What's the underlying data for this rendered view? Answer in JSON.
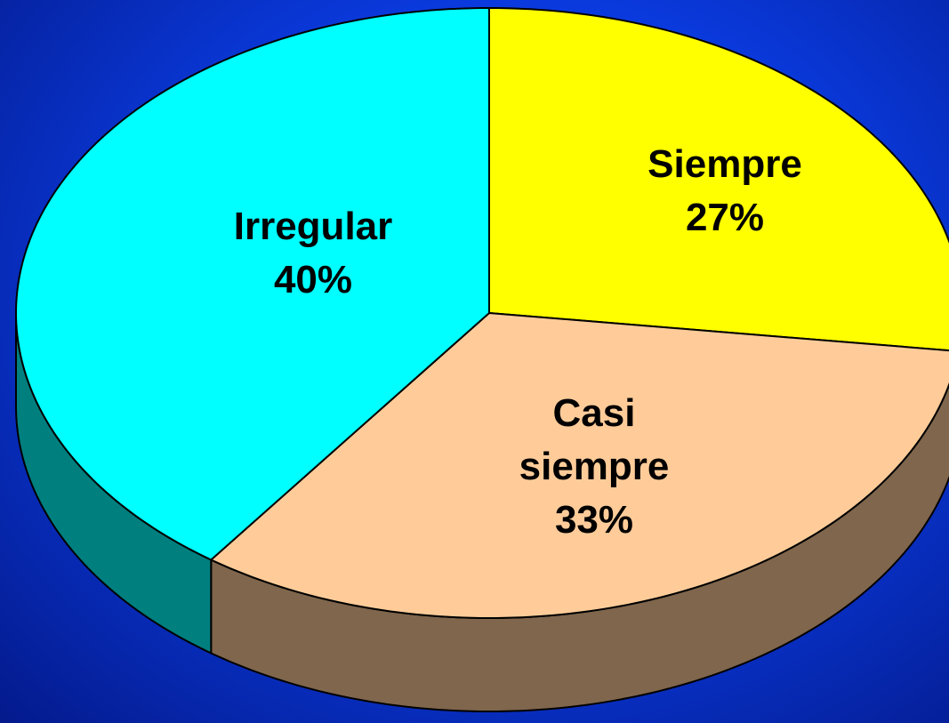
{
  "chart_data": {
    "type": "pie",
    "categories": [
      "Siempre",
      "Casi siempre",
      "Irregular"
    ],
    "values": [
      27,
      33,
      40
    ],
    "value_labels": [
      "27%",
      "33%",
      "40%"
    ],
    "colors": [
      "#ffff00",
      "#ffcc99",
      "#00ffff"
    ]
  }
}
